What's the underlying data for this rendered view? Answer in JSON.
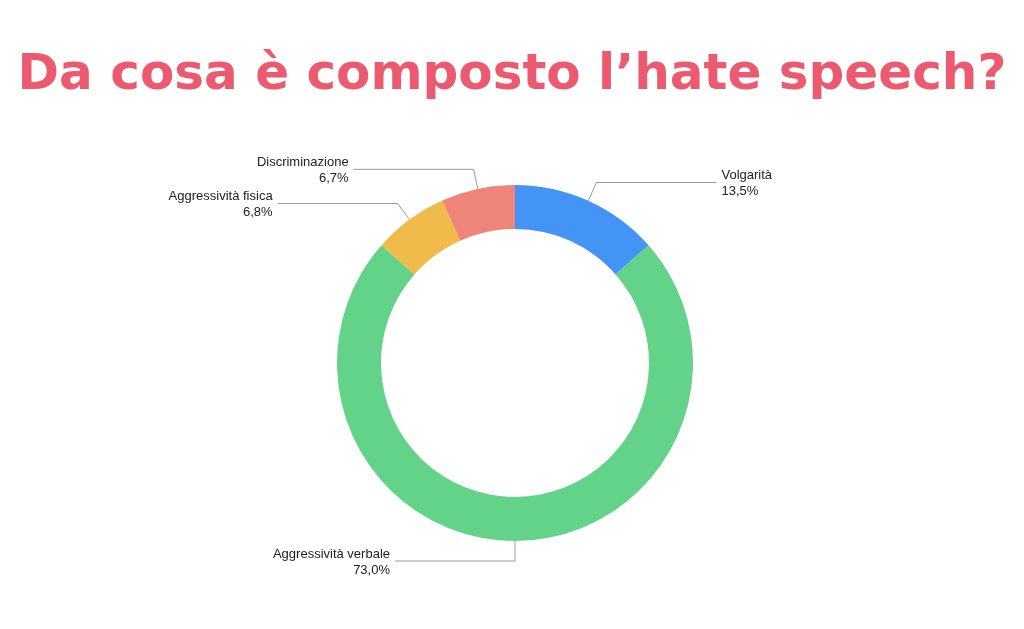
{
  "chart_data": {
    "type": "donut",
    "title": "Da cosa è composto l’hate speech?",
    "categories": [
      "Volgarità",
      "Aggressività verbale",
      "Aggressività fisica",
      "Discriminazione"
    ],
    "values": [
      13.5,
      73.0,
      6.8,
      6.7
    ],
    "value_labels": [
      "13,5%",
      "73,0%",
      "6,8%",
      "6,7%"
    ],
    "colors": [
      "#4394f5",
      "#62d388",
      "#f0bb4b",
      "#ef857a"
    ],
    "legend": false
  }
}
